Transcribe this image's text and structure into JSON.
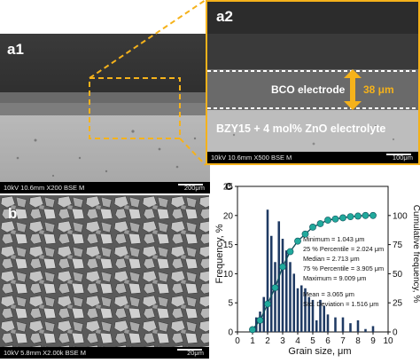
{
  "a1": {
    "label": "a1",
    "sem_info": "10kV 10.6mm X200 BSE M",
    "scale_text": "200μm"
  },
  "a2": {
    "label": "a2",
    "sem_info": "10kV 10.6mm X500 BSE M",
    "scale_text": "100μm",
    "electrode_label": "BCO electrode",
    "thickness_label": "38 μm",
    "electrolyte_label": "BZY15 + 4 mol% ZnO electrolyte"
  },
  "b": {
    "label": "b",
    "sem_info": "10kV 5.8mm X2.00k BSE M",
    "scale_text": "20μm"
  },
  "c": {
    "label": "c",
    "stats": [
      "Minimum = 1.043 μm",
      "25 % Percentile = 2.024 μm",
      "Median = 2.713 μm",
      "75 % Percentile = 3.905 μm",
      "Maximum = 9.009 μm",
      "Mean = 3.065 μm",
      "Std. Deviation = 1.516 μm"
    ]
  },
  "colors": {
    "highlight": "#f5b21b",
    "bar": "#1f3a63",
    "curve": "#21a99c"
  },
  "chart_data": {
    "type": "bar",
    "xlabel": "Grain size, μm",
    "ylabel": "Frequency, %",
    "y2label": "Cumulative frequency, %",
    "xlim": [
      0,
      10
    ],
    "ylim": [
      0,
      25
    ],
    "y2lim": [
      0,
      125
    ],
    "xticks": [
      0,
      1,
      2,
      3,
      4,
      5,
      6,
      7,
      8,
      9,
      10
    ],
    "yticks": [
      0,
      5,
      10,
      15,
      20,
      25
    ],
    "y2ticks": [
      0,
      25,
      50,
      75,
      100
    ],
    "series": [
      {
        "kind": "bar",
        "x": [
          1.25,
          1.5,
          1.75,
          2.0,
          2.25,
          2.5,
          2.75,
          3.0,
          3.25,
          3.5,
          3.75,
          4.0,
          4.25,
          4.5,
          4.75,
          5.0,
          5.25,
          5.5,
          5.75,
          6.0,
          6.5,
          7.0,
          7.5,
          8.0,
          8.5,
          9.0
        ],
        "values": [
          2.5,
          3.5,
          6.0,
          21.0,
          16.5,
          12.0,
          19.0,
          16.0,
          14.0,
          12.0,
          10.0,
          7.5,
          8.0,
          7.5,
          6.0,
          5.5,
          2.0,
          5.5,
          4.5,
          3.0,
          2.5,
          2.5,
          1.5,
          2.0,
          0.5,
          1.0
        ]
      },
      {
        "kind": "line",
        "x": [
          1,
          1.5,
          2,
          2.5,
          3,
          3.5,
          4,
          4.5,
          5,
          5.5,
          6,
          6.5,
          7,
          7.5,
          8,
          8.5,
          9
        ],
        "values": [
          2,
          10,
          24,
          38,
          56,
          69,
          78,
          84,
          90,
          93,
          96,
          97,
          98,
          99,
          99.5,
          100,
          100
        ]
      }
    ]
  }
}
